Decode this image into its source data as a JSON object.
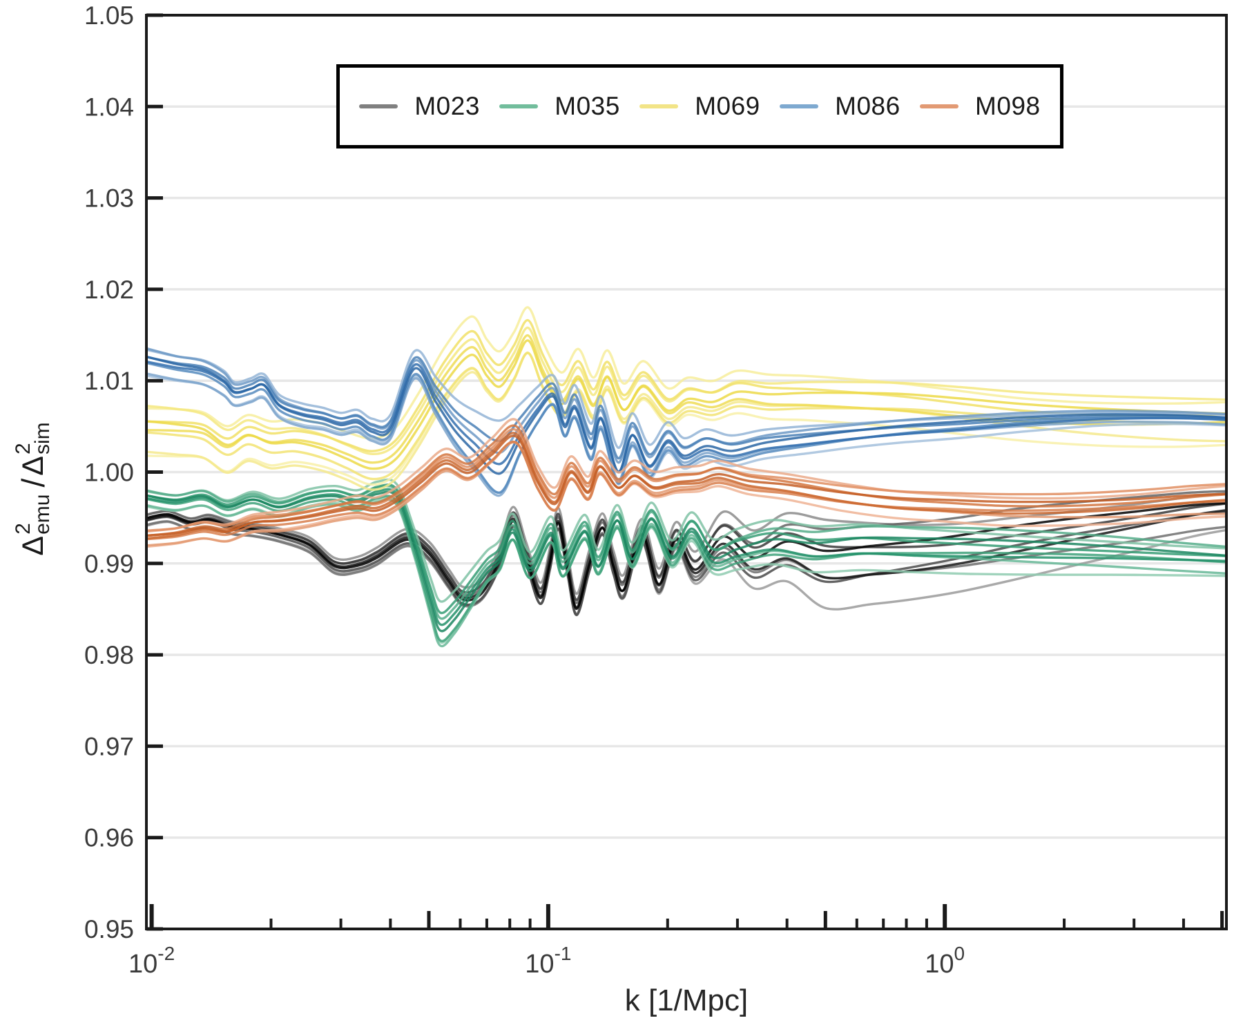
{
  "figure": {
    "background": "#ffffff"
  },
  "axes": {
    "xlabel": "k [1/Mpc]",
    "ylabel": {
      "delta": "Δ",
      "exp": "2",
      "sub_left": "emu",
      "slash": "/",
      "sub_right": "sim"
    },
    "xscale": "log",
    "xlim": [
      0.0097,
      5.13
    ],
    "ylim": [
      0.95,
      1.05
    ],
    "x_ticks": [
      {
        "k": 0.01,
        "base": "10",
        "exp": "-2"
      },
      {
        "k": 0.1,
        "base": "10",
        "exp": "-1"
      },
      {
        "k": 1.0,
        "base": "10",
        "exp": "0"
      }
    ],
    "y_ticks": [
      "0.95",
      "0.96",
      "0.97",
      "0.98",
      "0.99",
      "1.00",
      "1.01",
      "1.02",
      "1.03",
      "1.04",
      "1.05"
    ],
    "grid": "horizontal",
    "grid_color": "#e7e7e7",
    "spine_color": "#1a1a1a",
    "tick_label_color": "#3a3a3a"
  },
  "legend": {
    "position": "upper center",
    "items": [
      {
        "label": "M023",
        "color": "#808080"
      },
      {
        "label": "M035",
        "color": "#72bd9c"
      },
      {
        "label": "M069",
        "color": "#f2e487"
      },
      {
        "label": "M086",
        "color": "#7ea9d0"
      },
      {
        "label": "M098",
        "color": "#e29a74"
      }
    ]
  },
  "chart_data": {
    "type": "line",
    "xscale": "log",
    "xlabel": "k [1/Mpc]",
    "ylabel": "Delta^2_emu / Delta^2_sim",
    "xlim": [
      0.0097,
      5.13
    ],
    "ylim": [
      0.95,
      1.05
    ],
    "legend_position": "upper center",
    "note": "Each model is a bundle of closely spaced curves; points are [k, center_ratio, half_spread]",
    "series": [
      {
        "name": "M023",
        "color": "#808080",
        "shades": [
          "#9a9a9a",
          "#8b8b8b",
          "#6f6f6f",
          "#636363",
          "#4a4a4a",
          "#3a3a3a",
          "#161616",
          "#000000"
        ],
        "points": [
          [
            0.0097,
            0.9948,
            0.0007
          ],
          [
            0.011,
            0.9952,
            0.0007
          ],
          [
            0.0125,
            0.9944,
            0.0007
          ],
          [
            0.014,
            0.9947,
            0.0008
          ],
          [
            0.016,
            0.9939,
            0.0008
          ],
          [
            0.018,
            0.9937,
            0.0008
          ],
          [
            0.021,
            0.9931,
            0.0008
          ],
          [
            0.025,
            0.992,
            0.0009
          ],
          [
            0.029,
            0.9897,
            0.0009
          ],
          [
            0.033,
            0.9898,
            0.0009
          ],
          [
            0.037,
            0.9907,
            0.001
          ],
          [
            0.044,
            0.9927,
            0.001
          ],
          [
            0.05,
            0.9912,
            0.0011
          ],
          [
            0.056,
            0.9882,
            0.0011
          ],
          [
            0.061,
            0.9862,
            0.0011
          ],
          [
            0.068,
            0.9869,
            0.0012
          ],
          [
            0.075,
            0.9902,
            0.0012
          ],
          [
            0.0815,
            0.9948,
            0.0012
          ],
          [
            0.088,
            0.9908,
            0.0013
          ],
          [
            0.0955,
            0.9864,
            0.0013
          ],
          [
            0.101,
            0.9902,
            0.0013
          ],
          [
            0.106,
            0.9946,
            0.0013
          ],
          [
            0.112,
            0.9895,
            0.0013
          ],
          [
            0.118,
            0.9852,
            0.0013
          ],
          [
            0.127,
            0.99,
            0.0013
          ],
          [
            0.137,
            0.994,
            0.0013
          ],
          [
            0.146,
            0.9898,
            0.0014
          ],
          [
            0.155,
            0.9872,
            0.0014
          ],
          [
            0.172,
            0.9933,
            0.0014
          ],
          [
            0.19,
            0.9878,
            0.0015
          ],
          [
            0.21,
            0.9928,
            0.0016
          ],
          [
            0.235,
            0.9893,
            0.0019
          ],
          [
            0.276,
            0.9928,
            0.0028
          ],
          [
            0.33,
            0.9903,
            0.0034
          ],
          [
            0.4,
            0.9918,
            0.004
          ],
          [
            0.5,
            0.9903,
            0.0052
          ],
          [
            0.65,
            0.9906,
            0.0048
          ],
          [
            0.85,
            0.991,
            0.0044
          ],
          [
            1.1,
            0.9916,
            0.0041
          ],
          [
            1.5,
            0.9926,
            0.0038
          ],
          [
            2.1,
            0.9936,
            0.0034
          ],
          [
            3.0,
            0.9946,
            0.003
          ],
          [
            4.2,
            0.9956,
            0.0026
          ],
          [
            5.13,
            0.996,
            0.0024
          ]
        ]
      },
      {
        "name": "M035",
        "color": "#72bd9c",
        "shades": [
          "#8fcbb0",
          "#7fc2a5",
          "#66b796",
          "#55ad89",
          "#3fa27b",
          "#359c74",
          "#23906a",
          "#1b8660"
        ],
        "points": [
          [
            0.0097,
            0.9972,
            0.001
          ],
          [
            0.0115,
            0.9967,
            0.001
          ],
          [
            0.0135,
            0.9972,
            0.001
          ],
          [
            0.0155,
            0.9961,
            0.001
          ],
          [
            0.018,
            0.9969,
            0.0011
          ],
          [
            0.021,
            0.9961,
            0.0011
          ],
          [
            0.025,
            0.9971,
            0.0011
          ],
          [
            0.029,
            0.9974,
            0.0011
          ],
          [
            0.033,
            0.9968,
            0.0012
          ],
          [
            0.037,
            0.9977,
            0.0012
          ],
          [
            0.0415,
            0.9974,
            0.0012
          ],
          [
            0.046,
            0.992,
            0.0016
          ],
          [
            0.0505,
            0.986,
            0.0022
          ],
          [
            0.0534,
            0.983,
            0.0026
          ],
          [
            0.058,
            0.9842,
            0.0025
          ],
          [
            0.064,
            0.9868,
            0.0022
          ],
          [
            0.07,
            0.9892,
            0.0019
          ],
          [
            0.0755,
            0.9905,
            0.0018
          ],
          [
            0.0815,
            0.9936,
            0.0016
          ],
          [
            0.09,
            0.9894,
            0.0016
          ],
          [
            0.1015,
            0.9933,
            0.0016
          ],
          [
            0.109,
            0.9896,
            0.0016
          ],
          [
            0.1235,
            0.9936,
            0.0015
          ],
          [
            0.134,
            0.9898,
            0.0015
          ],
          [
            0.149,
            0.9948,
            0.0014
          ],
          [
            0.163,
            0.9906,
            0.0015
          ],
          [
            0.182,
            0.995,
            0.0015
          ],
          [
            0.205,
            0.9908,
            0.0016
          ],
          [
            0.23,
            0.9938,
            0.0017
          ],
          [
            0.26,
            0.9906,
            0.002
          ],
          [
            0.3,
            0.9914,
            0.0024
          ],
          [
            0.37,
            0.9923,
            0.0026
          ],
          [
            0.47,
            0.9917,
            0.0027
          ],
          [
            0.62,
            0.9921,
            0.0027
          ],
          [
            0.85,
            0.9919,
            0.0026
          ],
          [
            1.2,
            0.9917,
            0.0025
          ],
          [
            1.8,
            0.9914,
            0.0023
          ],
          [
            2.6,
            0.9911,
            0.0021
          ],
          [
            3.8,
            0.9907,
            0.0019
          ],
          [
            5.13,
            0.9904,
            0.0018
          ]
        ]
      },
      {
        "name": "M069",
        "color": "#f2e487",
        "shades": [
          "#f8f0a8",
          "#f7ed9b",
          "#f5e98c",
          "#f4e77f",
          "#f2e372",
          "#f1e066",
          "#eedc55",
          "#ecd947"
        ],
        "points": [
          [
            0.0097,
            1.0048,
            0.0031
          ],
          [
            0.0115,
            1.0046,
            0.0031
          ],
          [
            0.0135,
            1.0042,
            0.003
          ],
          [
            0.0155,
            1.0026,
            0.003
          ],
          [
            0.0175,
            1.0038,
            0.0029
          ],
          [
            0.02,
            1.003,
            0.0029
          ],
          [
            0.023,
            1.0032,
            0.0028
          ],
          [
            0.027,
            1.0026,
            0.0028
          ],
          [
            0.031,
            1.0016,
            0.0028
          ],
          [
            0.036,
            1.0006,
            0.003
          ],
          [
            0.041,
            1.0016,
            0.003
          ],
          [
            0.047,
            1.0052,
            0.0031
          ],
          [
            0.055,
            1.0102,
            0.0032
          ],
          [
            0.064,
            1.0133,
            0.0033
          ],
          [
            0.07,
            1.011,
            0.0031
          ],
          [
            0.0755,
            1.0098,
            0.003
          ],
          [
            0.082,
            1.012,
            0.0029
          ],
          [
            0.089,
            1.0148,
            0.0028
          ],
          [
            0.097,
            1.011,
            0.0028
          ],
          [
            0.108,
            1.0078,
            0.0027
          ],
          [
            0.119,
            1.0105,
            0.0026
          ],
          [
            0.13,
            1.0075,
            0.0025
          ],
          [
            0.141,
            1.0106,
            0.0024
          ],
          [
            0.155,
            1.007,
            0.0024
          ],
          [
            0.174,
            1.0096,
            0.0023
          ],
          [
            0.2,
            1.0068,
            0.0022
          ],
          [
            0.225,
            1.008,
            0.0022
          ],
          [
            0.26,
            1.0076,
            0.0023
          ],
          [
            0.3,
            1.0086,
            0.0025
          ],
          [
            0.36,
            1.0082,
            0.0026
          ],
          [
            0.45,
            1.0082,
            0.0026
          ],
          [
            0.6,
            1.008,
            0.0026
          ],
          [
            0.8,
            1.0077,
            0.0026
          ],
          [
            1.1,
            1.0071,
            0.0026
          ],
          [
            1.6,
            1.0064,
            0.0026
          ],
          [
            2.5,
            1.0059,
            0.0027
          ],
          [
            3.8,
            1.0057,
            0.0028
          ],
          [
            5.13,
            1.0057,
            0.0028
          ]
        ]
      },
      {
        "name": "M086",
        "color": "#7ea9d0",
        "shades": [
          "#a3bfdc",
          "#93b4d6",
          "#7ba3cb",
          "#6d99c5",
          "#5589bd",
          "#4a80b6",
          "#336fae",
          "#2a66a5"
        ],
        "points": [
          [
            0.0097,
            1.0122,
            0.0017
          ],
          [
            0.0115,
            1.0115,
            0.0016
          ],
          [
            0.0135,
            1.011,
            0.0016
          ],
          [
            0.0152,
            1.0098,
            0.0016
          ],
          [
            0.0162,
            1.0086,
            0.0015
          ],
          [
            0.0178,
            1.009,
            0.0015
          ],
          [
            0.0192,
            1.0094,
            0.0015
          ],
          [
            0.021,
            1.0072,
            0.0014
          ],
          [
            0.024,
            1.0062,
            0.0014
          ],
          [
            0.027,
            1.0058,
            0.0013
          ],
          [
            0.03,
            1.0052,
            0.0013
          ],
          [
            0.033,
            1.0055,
            0.0013
          ],
          [
            0.036,
            1.0045,
            0.0013
          ],
          [
            0.04,
            1.0048,
            0.0014
          ],
          [
            0.046,
            1.0115,
            0.0016
          ],
          [
            0.052,
            1.008,
            0.0022
          ],
          [
            0.058,
            1.005,
            0.0028
          ],
          [
            0.065,
            1.0028,
            0.0035
          ],
          [
            0.0755,
            1.0005,
            0.0045
          ],
          [
            0.085,
            1.004,
            0.003
          ],
          [
            0.094,
            1.0068,
            0.0022
          ],
          [
            0.103,
            1.0085,
            0.0018
          ],
          [
            0.11,
            1.0052,
            0.002
          ],
          [
            0.117,
            1.0072,
            0.002
          ],
          [
            0.128,
            1.0028,
            0.0022
          ],
          [
            0.136,
            1.006,
            0.002
          ],
          [
            0.15,
            1.0002,
            0.0022
          ],
          [
            0.163,
            1.0042,
            0.002
          ],
          [
            0.18,
            1.0008,
            0.002
          ],
          [
            0.2,
            1.0035,
            0.0018
          ],
          [
            0.22,
            1.0018,
            0.0018
          ],
          [
            0.25,
            1.0028,
            0.0018
          ],
          [
            0.29,
            1.0022,
            0.0018
          ],
          [
            0.35,
            1.003,
            0.0017
          ],
          [
            0.45,
            1.0036,
            0.0016
          ],
          [
            0.6,
            1.0042,
            0.0014
          ],
          [
            0.8,
            1.0047,
            0.0013
          ],
          [
            1.1,
            1.0051,
            0.0012
          ],
          [
            1.6,
            1.0056,
            0.001
          ],
          [
            2.5,
            1.006,
            0.0008
          ],
          [
            3.8,
            1.006,
            0.0007
          ],
          [
            5.13,
            1.0058,
            0.0007
          ]
        ]
      },
      {
        "name": "M098",
        "color": "#e29a74",
        "shades": [
          "#eeb394",
          "#eaa988",
          "#e39a72",
          "#e08e62",
          "#d87f4e",
          "#d3753f",
          "#cb6830",
          "#c45e26"
        ],
        "points": [
          [
            0.0097,
            0.9928,
            0.001
          ],
          [
            0.0115,
            0.9931,
            0.001
          ],
          [
            0.0135,
            0.9937,
            0.0011
          ],
          [
            0.0155,
            0.9934,
            0.0011
          ],
          [
            0.018,
            0.9944,
            0.0011
          ],
          [
            0.021,
            0.9946,
            0.0012
          ],
          [
            0.025,
            0.9951,
            0.0012
          ],
          [
            0.029,
            0.9957,
            0.0012
          ],
          [
            0.033,
            0.9961,
            0.0013
          ],
          [
            0.037,
            0.9959,
            0.0013
          ],
          [
            0.042,
            0.9971,
            0.0013
          ],
          [
            0.048,
            0.9991,
            0.0013
          ],
          [
            0.055,
            1.0011,
            0.0013
          ],
          [
            0.063,
            1.0001,
            0.0013
          ],
          [
            0.072,
            1.0021,
            0.0014
          ],
          [
            0.083,
            1.0041,
            0.0014
          ],
          [
            0.094,
            0.9991,
            0.0014
          ],
          [
            0.104,
            0.9967,
            0.0014
          ],
          [
            0.114,
            1.0001,
            0.0014
          ],
          [
            0.126,
            0.9979,
            0.0014
          ],
          [
            0.135,
            1.0007,
            0.0014
          ],
          [
            0.15,
            0.9984,
            0.0014
          ],
          [
            0.165,
            0.9997,
            0.0014
          ],
          [
            0.185,
            0.9984,
            0.0015
          ],
          [
            0.21,
            0.9989,
            0.0015
          ],
          [
            0.24,
            0.9991,
            0.0015
          ],
          [
            0.27,
            0.9997,
            0.0015
          ],
          [
            0.32,
            0.9989,
            0.0015
          ],
          [
            0.4,
            0.9984,
            0.0015
          ],
          [
            0.55,
            0.9974,
            0.0016
          ],
          [
            0.75,
            0.9967,
            0.0016
          ],
          [
            1.0,
            0.9964,
            0.0016
          ],
          [
            1.4,
            0.9961,
            0.0017
          ],
          [
            2.0,
            0.9961,
            0.0017
          ],
          [
            3.0,
            0.9964,
            0.0018
          ],
          [
            4.2,
            0.9969,
            0.0019
          ],
          [
            5.13,
            0.9971,
            0.002
          ]
        ]
      }
    ]
  }
}
